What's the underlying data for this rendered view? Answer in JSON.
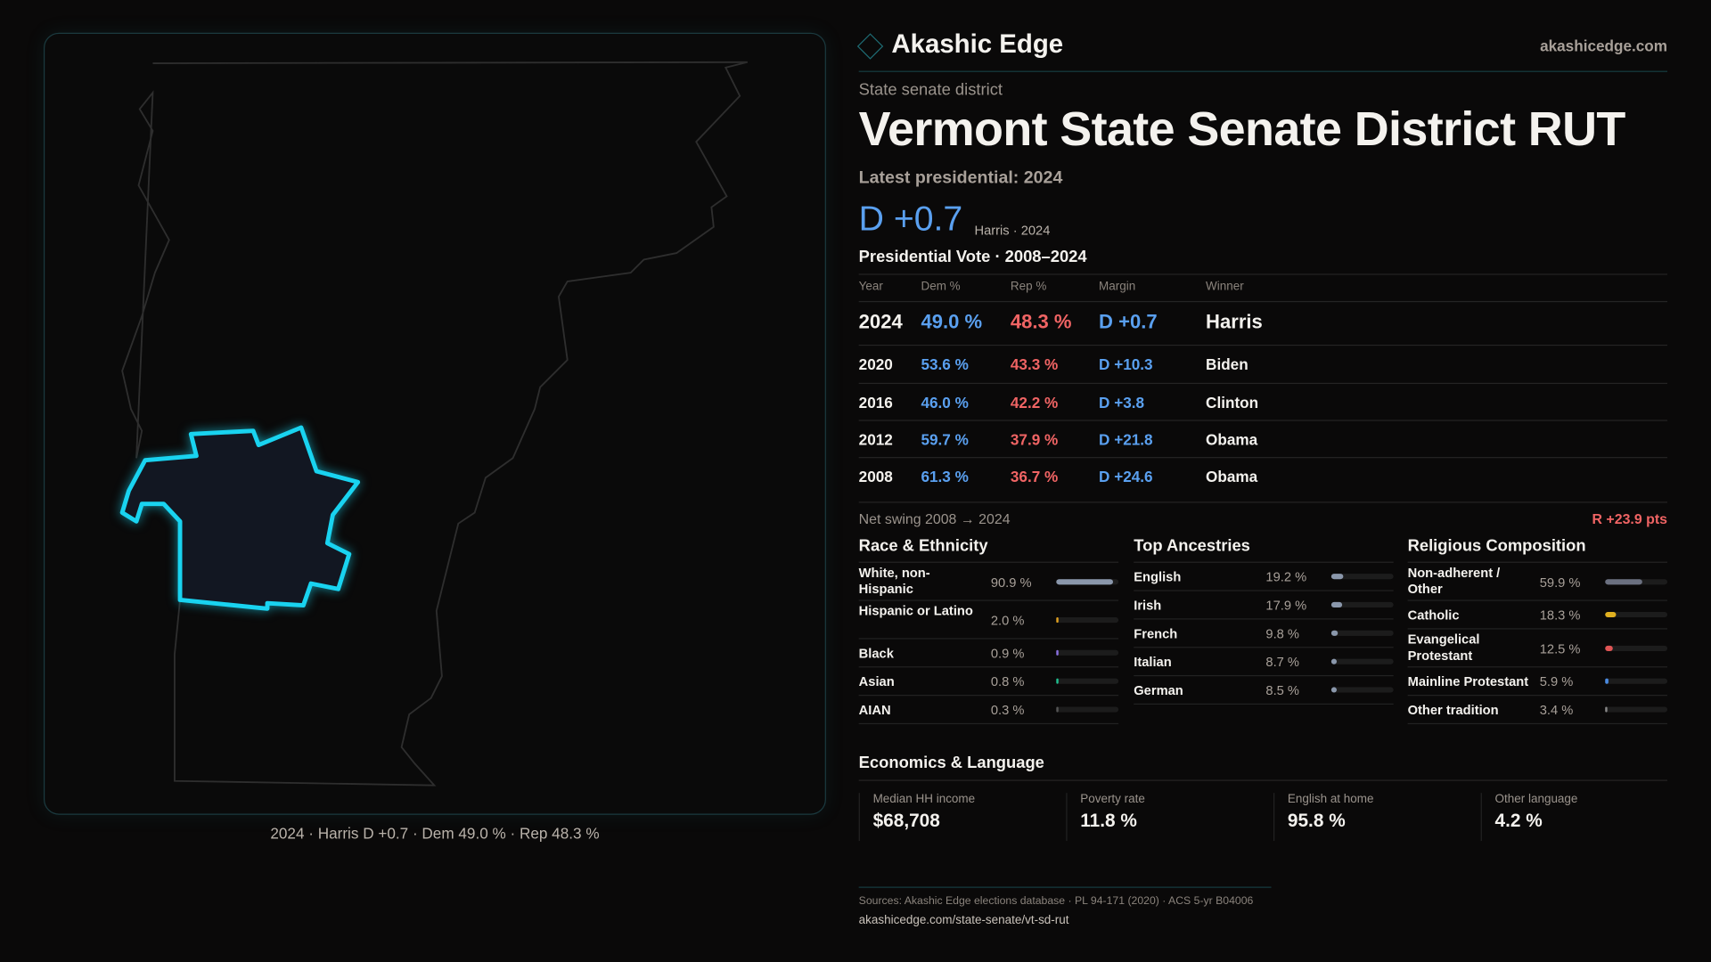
{
  "brand": {
    "name": "Akashic Edge",
    "site": "akashicedge.com"
  },
  "header": {
    "kind": "State senate district",
    "title": "Vermont State Senate District RUT",
    "latest": "Latest presidential: 2024",
    "margin": "D +0.7",
    "margin_sub": "Harris · 2024"
  },
  "map": {
    "caption": "2024 · Harris D +0.7 · Dem 49.0 % · Rep 48.3 %",
    "highlight_color": "#19d3f0"
  },
  "vote": {
    "title": "Presidential Vote · 2008–2024",
    "headers": [
      "Year",
      "Dem %",
      "Rep %",
      "Margin",
      "Winner"
    ],
    "rows": [
      [
        "2024",
        "49.0 %",
        "48.3 %",
        "D +0.7",
        "Harris"
      ],
      [
        "2020",
        "53.6 %",
        "43.3 %",
        "D +10.3",
        "Biden"
      ],
      [
        "2016",
        "46.0 %",
        "42.2 %",
        "D +3.8",
        "Clinton"
      ],
      [
        "2012",
        "59.7 %",
        "37.9 %",
        "D +21.8",
        "Obama"
      ],
      [
        "2008",
        "61.3 %",
        "36.7 %",
        "D +24.6",
        "Obama"
      ]
    ]
  },
  "swing": {
    "label": "Net swing 2008 → 2024",
    "value": "R +23.9 pts"
  },
  "race": {
    "title": "Race & Ethnicity",
    "items": [
      {
        "label": "White, non-Hispanic",
        "pct": "90.9 %",
        "value": 90.9,
        "color": "#8a97ab"
      },
      {
        "label": "Hispanic or Latino",
        "pct": "2.0 %",
        "value": 2.0,
        "color": "#e0a020"
      },
      {
        "label": "Black",
        "pct": "0.9 %",
        "value": 0.9,
        "color": "#8a70e0"
      },
      {
        "label": "Asian",
        "pct": "0.8 %",
        "value": 0.8,
        "color": "#20c090"
      },
      {
        "label": "AIAN",
        "pct": "0.3 %",
        "value": 0.3,
        "color": "#555"
      }
    ]
  },
  "ancestry": {
    "title": "Top Ancestries",
    "items": [
      {
        "label": "English",
        "pct": "19.2 %",
        "value": 19.2,
        "color": "#8a97ab"
      },
      {
        "label": "Irish",
        "pct": "17.9 %",
        "value": 17.9,
        "color": "#8a97ab"
      },
      {
        "label": "French",
        "pct": "9.8 %",
        "value": 9.8,
        "color": "#8a97ab"
      },
      {
        "label": "Italian",
        "pct": "8.7 %",
        "value": 8.7,
        "color": "#8a97ab"
      },
      {
        "label": "German",
        "pct": "8.5 %",
        "value": 8.5,
        "color": "#8a97ab"
      }
    ]
  },
  "religion": {
    "title": "Religious Composition",
    "items": [
      {
        "label": "Non-adherent / Other",
        "pct": "59.9 %",
        "value": 59.9,
        "color": "#6b7080"
      },
      {
        "label": "Catholic",
        "pct": "18.3 %",
        "value": 18.3,
        "color": "#e0b020"
      },
      {
        "label": "Evangelical Protestant",
        "pct": "12.5 %",
        "value": 12.5,
        "color": "#e05555"
      },
      {
        "label": "Mainline Protestant",
        "pct": "5.9 %",
        "value": 5.9,
        "color": "#4a8ae0"
      },
      {
        "label": "Other tradition",
        "pct": "3.4 %",
        "value": 3.4,
        "color": "#888"
      }
    ]
  },
  "econ": {
    "title": "Economics & Language",
    "stats": [
      {
        "label": "Median HH income",
        "value": "$68,708"
      },
      {
        "label": "Poverty rate",
        "value": "11.8 %"
      },
      {
        "label": "English at home",
        "value": "95.8 %"
      },
      {
        "label": "Other language",
        "value": "4.2 %"
      }
    ]
  },
  "footer": {
    "sources": "Sources: Akashic Edge elections database · PL 94-171 (2020) · ACS 5-yr B04006",
    "url": "akashicedge.com/state-senate/vt-sd-rut"
  }
}
